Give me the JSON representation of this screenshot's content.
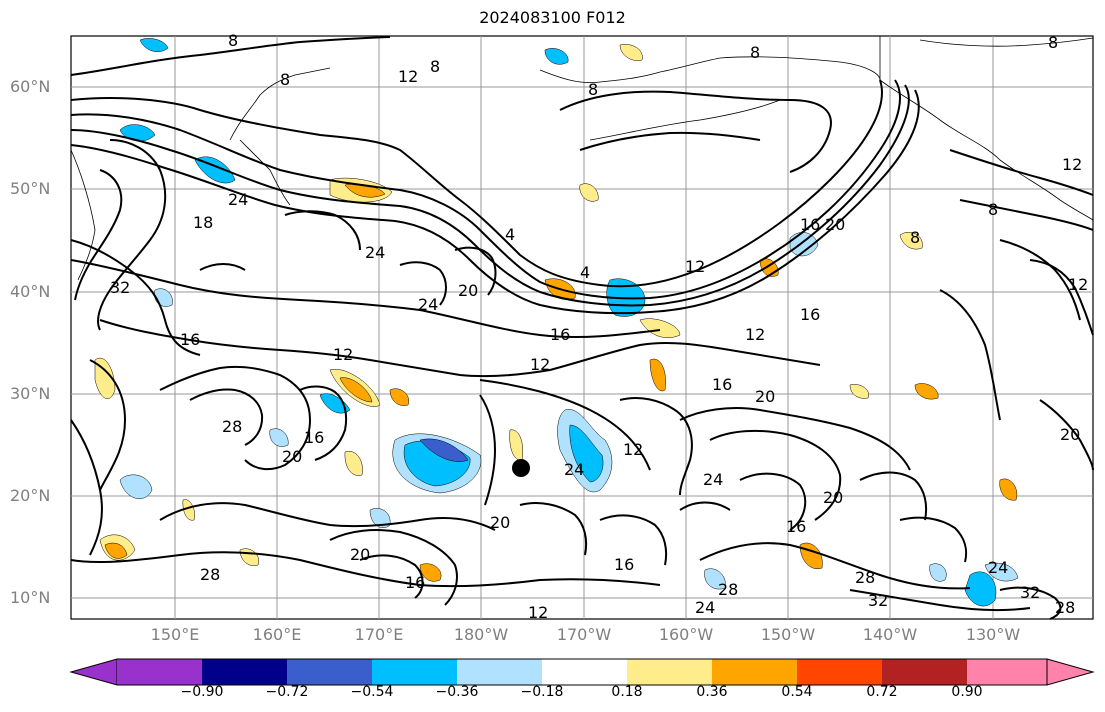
{
  "title": "2024083100 F012",
  "lat_labels": [
    "60°N",
    "50°N",
    "40°N",
    "30°N",
    "20°N",
    "10°N"
  ],
  "lon_labels": [
    "150°E",
    "160°E",
    "170°E",
    "180°W",
    "170°W",
    "160°W",
    "150°W",
    "140°W",
    "130°W"
  ],
  "contour_labels": [
    "8",
    "8",
    "12",
    "8",
    "8",
    "8",
    "8",
    "12",
    "24",
    "18",
    "32",
    "24",
    "20",
    "24",
    "4",
    "4",
    "16",
    "20",
    "12",
    "16",
    "12",
    "16",
    "12",
    "16",
    "20",
    "28",
    "16",
    "20",
    "24",
    "12",
    "24",
    "20",
    "16",
    "20",
    "28",
    "20",
    "16",
    "16",
    "24",
    "28",
    "28",
    "32",
    "24",
    "32",
    "28",
    "12",
    "8",
    "8",
    "12",
    "12",
    "20",
    "16"
  ],
  "colorbar": {
    "ticks": [
      "−0.90",
      "−0.72",
      "−0.54",
      "−0.36",
      "−0.18",
      "0.18",
      "0.36",
      "0.54",
      "0.72",
      "0.90"
    ],
    "colors": [
      "#9932cc",
      "#00008b",
      "#3a5fcd",
      "#00bfff",
      "#b0e2ff",
      "#ffffff",
      "#ffec8b",
      "#ffa500",
      "#ff4500",
      "#b22222",
      "#ff82ab"
    ]
  },
  "marker": {
    "label": "storm-center"
  }
}
